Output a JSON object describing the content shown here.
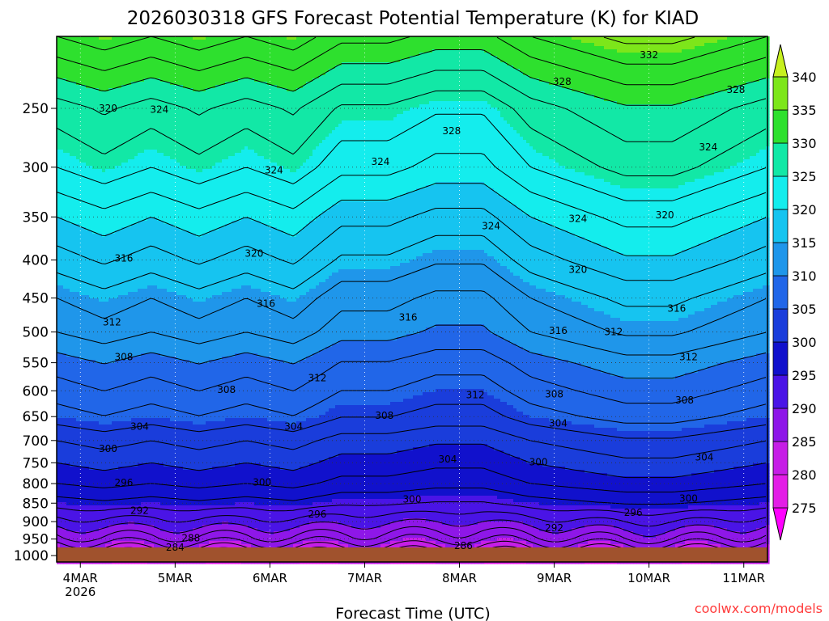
{
  "chart_data": {
    "type": "heatmap",
    "title": "2026030318 GFS Forecast Potential Temperature (K) for KIAD",
    "xlabel": "Forecast Time (UTC)",
    "ylabel": "",
    "credit": "coolwx.com/models",
    "x_ticks": [
      {
        "label": "4MAR",
        "sub": "2026",
        "hours": 6
      },
      {
        "label": "5MAR",
        "sub": "",
        "hours": 30
      },
      {
        "label": "6MAR",
        "sub": "",
        "hours": 54
      },
      {
        "label": "7MAR",
        "sub": "",
        "hours": 78
      },
      {
        "label": "8MAR",
        "sub": "",
        "hours": 102
      },
      {
        "label": "9MAR",
        "sub": "",
        "hours": 126
      },
      {
        "label": "10MAR",
        "sub": "",
        "hours": 150
      },
      {
        "label": "11MAR",
        "sub": "",
        "hours": 174
      }
    ],
    "xlim_hours": [
      0,
      180
    ],
    "y_ticks_hpa": [
      "250",
      "300",
      "350",
      "400",
      "450",
      "500",
      "550",
      "600",
      "650",
      "700",
      "750",
      "800",
      "850",
      "900",
      "950",
      "1000"
    ],
    "ylim_hpa": [
      200,
      1020
    ],
    "y_scale": "log-pressure (inverted)",
    "grid": true,
    "colorbar": {
      "levels": [
        "340",
        "335",
        "330",
        "325",
        "320",
        "315",
        "310",
        "305",
        "300",
        "295",
        "290",
        "285",
        "280",
        "275"
      ],
      "bands": [
        {
          "lo": 270,
          "hi": 275,
          "color": "#ff00ff"
        },
        {
          "lo": 275,
          "hi": 280,
          "color": "#e31ee6"
        },
        {
          "lo": 280,
          "hi": 285,
          "color": "#c61ee6"
        },
        {
          "lo": 285,
          "hi": 290,
          "color": "#8e17e8"
        },
        {
          "lo": 290,
          "hi": 295,
          "color": "#4a14e6"
        },
        {
          "lo": 295,
          "hi": 300,
          "color": "#1111cc"
        },
        {
          "lo": 300,
          "hi": 305,
          "color": "#1a3ddb"
        },
        {
          "lo": 305,
          "hi": 310,
          "color": "#2166e8"
        },
        {
          "lo": 310,
          "hi": 315,
          "color": "#1f96ea"
        },
        {
          "lo": 315,
          "hi": 320,
          "color": "#16c4f0"
        },
        {
          "lo": 320,
          "hi": 325,
          "color": "#14eded"
        },
        {
          "lo": 325,
          "hi": 330,
          "color": "#12e8a6"
        },
        {
          "lo": 330,
          "hi": 335,
          "color": "#2ee02e"
        },
        {
          "lo": 335,
          "hi": 340,
          "color": "#7de61a"
        },
        {
          "lo": 340,
          "hi": 345,
          "color": "#c6f01e"
        }
      ]
    },
    "ground_color": "#a0522d",
    "contour_interval_K": 2,
    "profile": [
      {
        "p": 1000,
        "theta": 281
      },
      {
        "p": 950,
        "theta": 287
      },
      {
        "p": 900,
        "theta": 291
      },
      {
        "p": 850,
        "theta": 295
      },
      {
        "p": 800,
        "theta": 298
      },
      {
        "p": 750,
        "theta": 300
      },
      {
        "p": 700,
        "theta": 302
      },
      {
        "p": 650,
        "theta": 305
      },
      {
        "p": 600,
        "theta": 307
      },
      {
        "p": 550,
        "theta": 309
      },
      {
        "p": 500,
        "theta": 312
      },
      {
        "p": 450,
        "theta": 314
      },
      {
        "p": 400,
        "theta": 317
      },
      {
        "p": 350,
        "theta": 320
      },
      {
        "p": 300,
        "theta": 324
      },
      {
        "p": 250,
        "theta": 327
      },
      {
        "p": 200,
        "theta": 334
      }
    ],
    "anomalies": [
      {
        "t": 0,
        "d": 0
      },
      {
        "t": 12,
        "d": 1
      },
      {
        "t": 24,
        "d": 0
      },
      {
        "t": 36,
        "d": 1
      },
      {
        "t": 48,
        "d": 0
      },
      {
        "t": 60,
        "d": 1
      },
      {
        "t": 72,
        "d": -1
      },
      {
        "t": 84,
        "d": -1
      },
      {
        "t": 96,
        "d": -2
      },
      {
        "t": 108,
        "d": -2
      },
      {
        "t": 120,
        "d": 0
      },
      {
        "t": 132,
        "d": 1
      },
      {
        "t": 144,
        "d": 2
      },
      {
        "t": 156,
        "d": 2
      },
      {
        "t": 168,
        "d": 1
      },
      {
        "t": 180,
        "d": 0
      }
    ],
    "contour_labels": [
      {
        "text": "332",
        "t": 150,
        "p": 212
      },
      {
        "text": "328",
        "t": 128,
        "p": 230
      },
      {
        "text": "328",
        "t": 172,
        "p": 236
      },
      {
        "text": "320",
        "t": 13,
        "p": 250
      },
      {
        "text": "324",
        "t": 26,
        "p": 251
      },
      {
        "text": "328",
        "t": 100,
        "p": 268
      },
      {
        "text": "324",
        "t": 82,
        "p": 295
      },
      {
        "text": "324",
        "t": 55,
        "p": 303
      },
      {
        "text": "324",
        "t": 165,
        "p": 282
      },
      {
        "text": "324",
        "t": 110,
        "p": 360
      },
      {
        "text": "324",
        "t": 132,
        "p": 352
      },
      {
        "text": "320",
        "t": 154,
        "p": 348
      },
      {
        "text": "320",
        "t": 50,
        "p": 392
      },
      {
        "text": "320",
        "t": 132,
        "p": 412
      },
      {
        "text": "316",
        "t": 17,
        "p": 398
      },
      {
        "text": "316",
        "t": 53,
        "p": 458
      },
      {
        "text": "316",
        "t": 89,
        "p": 478
      },
      {
        "text": "316",
        "t": 157,
        "p": 465
      },
      {
        "text": "312",
        "t": 14,
        "p": 485
      },
      {
        "text": "316",
        "t": 127,
        "p": 498
      },
      {
        "text": "312",
        "t": 141,
        "p": 500
      },
      {
        "text": "308",
        "t": 17,
        "p": 540
      },
      {
        "text": "312",
        "t": 66,
        "p": 577
      },
      {
        "text": "312",
        "t": 160,
        "p": 540
      },
      {
        "text": "308",
        "t": 43,
        "p": 598
      },
      {
        "text": "312",
        "t": 106,
        "p": 608
      },
      {
        "text": "308",
        "t": 126,
        "p": 606
      },
      {
        "text": "308",
        "t": 83,
        "p": 648
      },
      {
        "text": "308",
        "t": 159,
        "p": 618
      },
      {
        "text": "304",
        "t": 21,
        "p": 670
      },
      {
        "text": "304",
        "t": 60,
        "p": 670
      },
      {
        "text": "304",
        "t": 127,
        "p": 664
      },
      {
        "text": "300",
        "t": 13,
        "p": 718
      },
      {
        "text": "304",
        "t": 99,
        "p": 742
      },
      {
        "text": "300",
        "t": 122,
        "p": 748
      },
      {
        "text": "304",
        "t": 164,
        "p": 737
      },
      {
        "text": "296",
        "t": 17,
        "p": 798
      },
      {
        "text": "300",
        "t": 52,
        "p": 797
      },
      {
        "text": "300",
        "t": 90,
        "p": 840
      },
      {
        "text": "300",
        "t": 160,
        "p": 838
      },
      {
        "text": "292",
        "t": 21,
        "p": 870
      },
      {
        "text": "296",
        "t": 66,
        "p": 880
      },
      {
        "text": "296",
        "t": 146,
        "p": 875
      },
      {
        "text": "292",
        "t": 126,
        "p": 918
      },
      {
        "text": "288",
        "t": 34,
        "p": 947
      },
      {
        "text": "286",
        "t": 103,
        "p": 970
      },
      {
        "text": "284",
        "t": 30,
        "p": 975
      }
    ]
  }
}
